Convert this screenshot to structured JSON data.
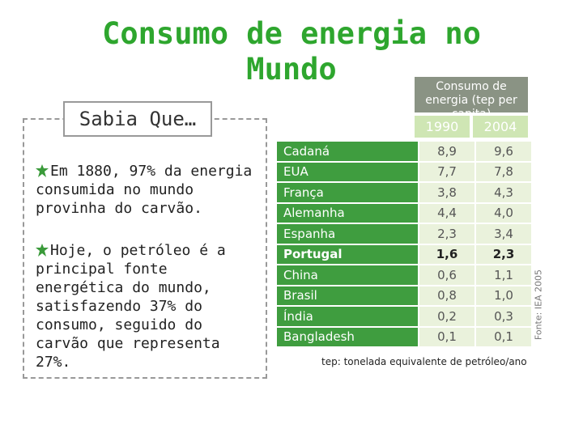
{
  "title": "Consumo de energia no Mundo",
  "sidebar": {
    "heading": "Sabia Que…",
    "bullets": [
      "Em 1880, 97% da energia consumida no mundo provinha do carvão.",
      "Hoje, o petróleo é a principal fonte energética do mundo, satisfazendo 37% do consumo, seguido do carvão que representa 27%."
    ]
  },
  "table": {
    "caption": "Consumo de energia (tep per capita)",
    "columns": [
      "1990",
      "2004"
    ],
    "rows": [
      [
        "Cadaná",
        "8,9",
        "9,6"
      ],
      [
        "EUA",
        "7,7",
        "7,8"
      ],
      [
        "França",
        "3,8",
        "4,3"
      ],
      [
        "Alemanha",
        "4,4",
        "4,0"
      ],
      [
        "Espanha",
        "2,3",
        "3,4"
      ],
      [
        "Portugal",
        "1,6",
        "2,3"
      ],
      [
        "China",
        "0,6",
        "1,1"
      ],
      [
        "Brasil",
        "0,8",
        "1,0"
      ],
      [
        "Índia",
        "0,2",
        "0,3"
      ],
      [
        "Bangladesh",
        "0,1",
        "0,1"
      ]
    ],
    "highlight_row": 5,
    "footnote": "tep: tonelada equivalente de petróleo/ano",
    "source": "Fonte: IEA 2005"
  }
}
